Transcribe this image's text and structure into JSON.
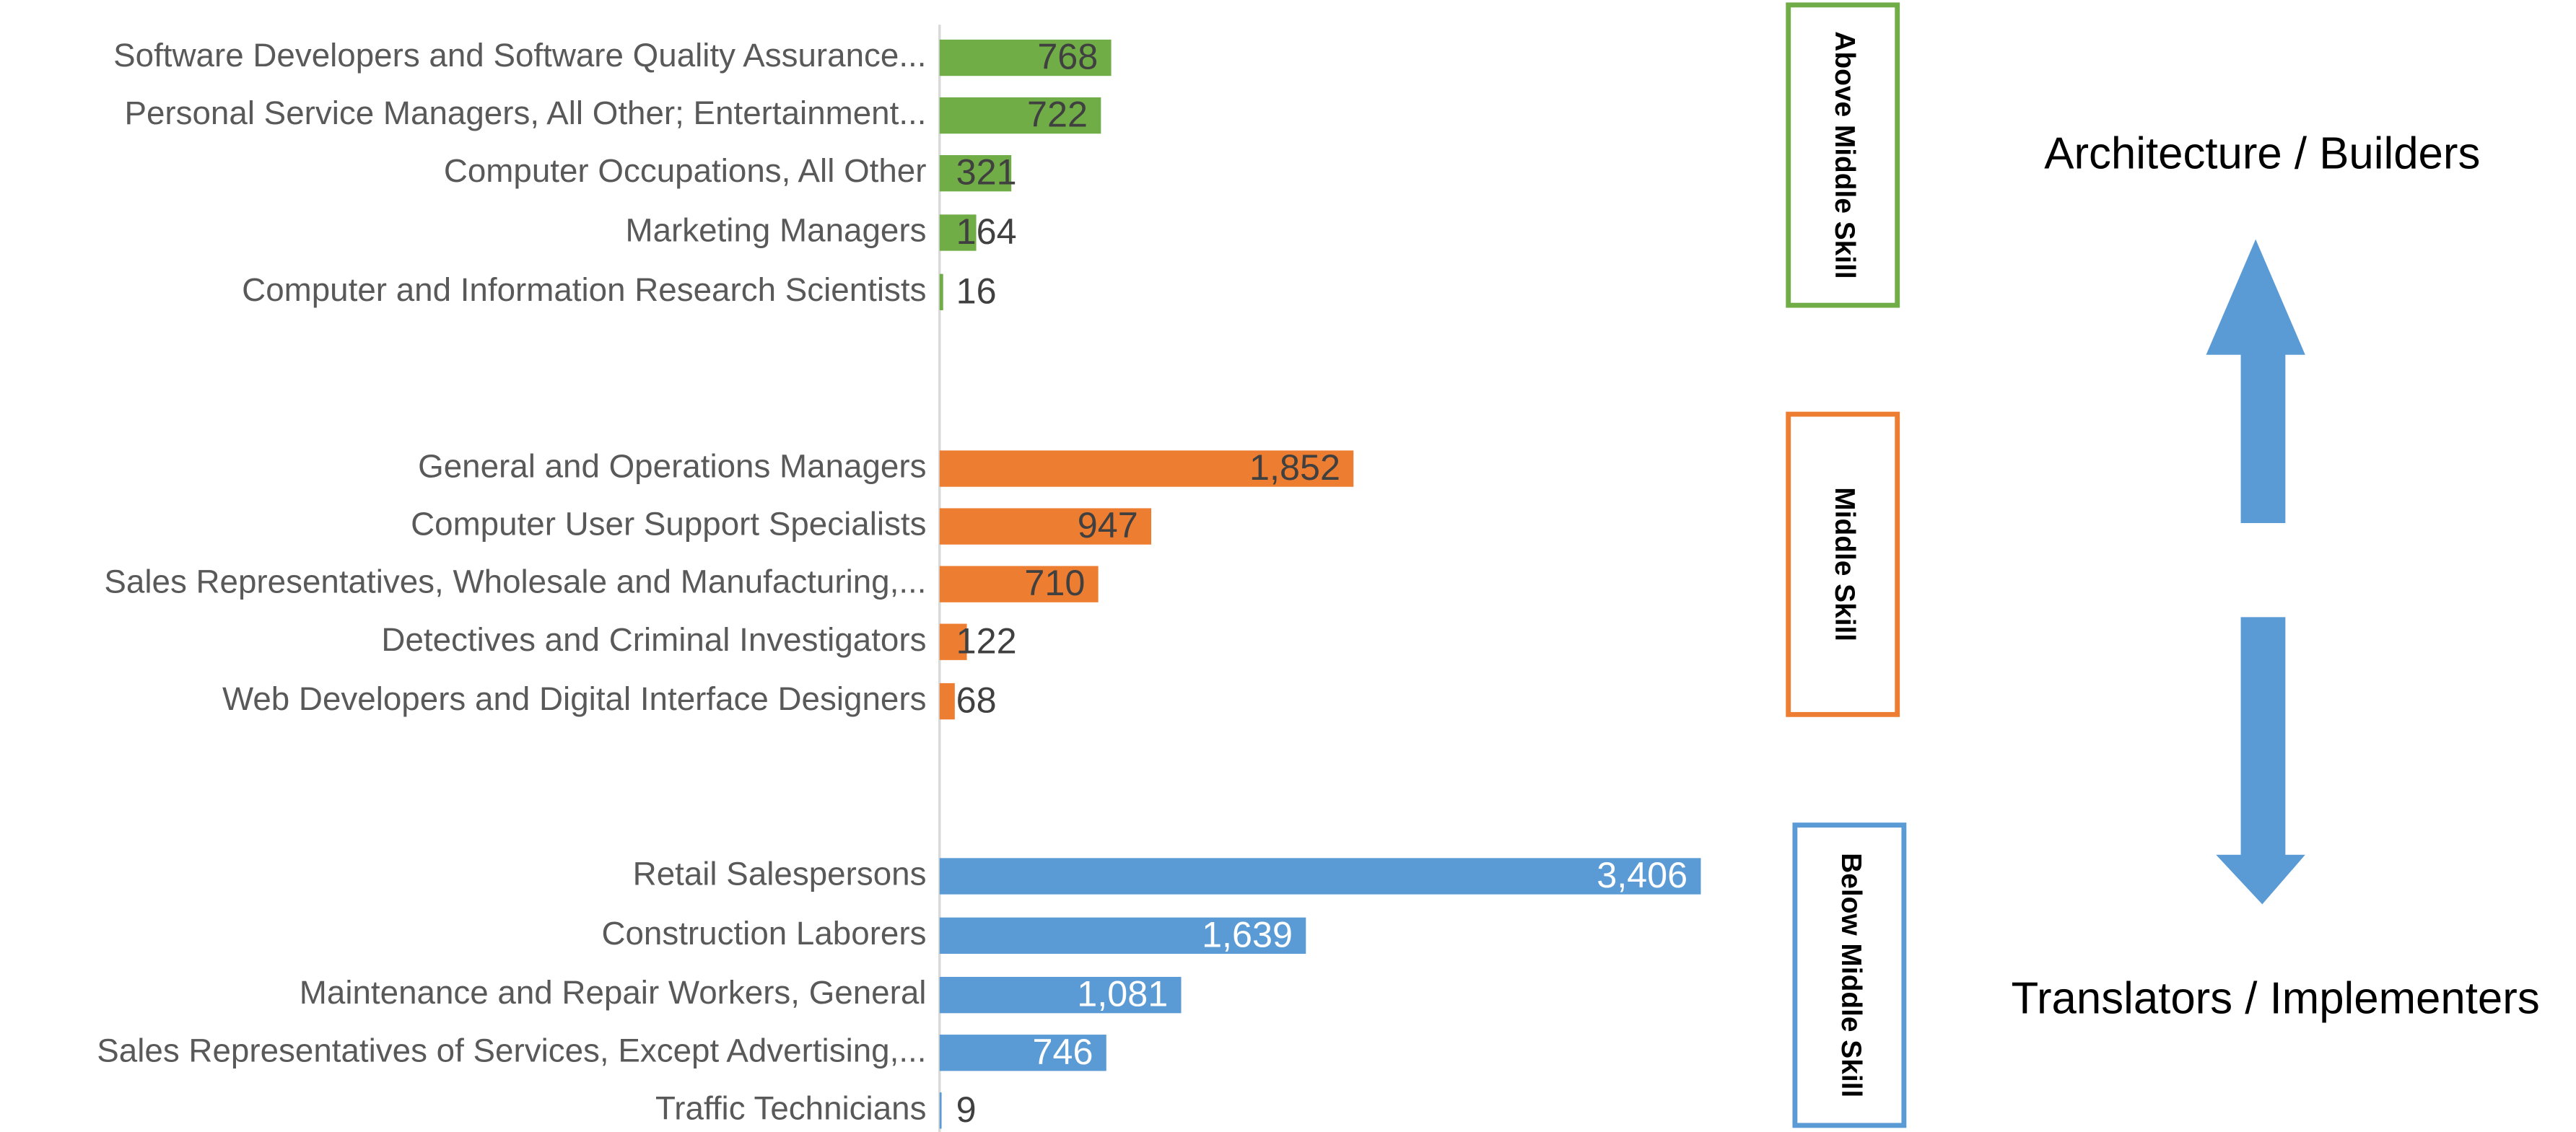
{
  "chart_data": {
    "type": "bar",
    "orientation": "horizontal",
    "groups": [
      {
        "name": "Above Middle Skill",
        "color": "#70ad47",
        "categories": [
          "Software Developers and Software Quality Assurance...",
          "Personal Service Managers, All Other; Entertainment...",
          "Computer Occupations, All Other",
          "Marketing Managers",
          "Computer and Information Research Scientists"
        ],
        "values": [
          768,
          722,
          321,
          164,
          16
        ],
        "value_labels": [
          "768",
          "722",
          "321",
          "164",
          "16"
        ]
      },
      {
        "name": "Middle Skill",
        "color": "#ed7d31",
        "categories": [
          "General and Operations Managers",
          "Computer User Support Specialists",
          "Sales Representatives, Wholesale and Manufacturing,...",
          "Detectives and Criminal Investigators",
          "Web Developers and Digital Interface Designers"
        ],
        "values": [
          1852,
          947,
          710,
          122,
          68
        ],
        "value_labels": [
          "1,852",
          "947",
          "710",
          "122",
          "68"
        ]
      },
      {
        "name": "Below Middle Skill",
        "color": "#5b9bd5",
        "categories": [
          "Retail Salespersons",
          "Construction Laborers",
          "Maintenance and Repair Workers, General",
          "Sales Representatives of Services, Except Advertising,...",
          "Traffic Technicians"
        ],
        "values": [
          3406,
          1639,
          1081,
          746,
          9
        ],
        "value_labels": [
          "3,406",
          "1,639",
          "1,081",
          "746",
          "9"
        ]
      }
    ],
    "annotations": [
      "Architecture / Builders",
      "Translators / Implementers"
    ]
  }
}
